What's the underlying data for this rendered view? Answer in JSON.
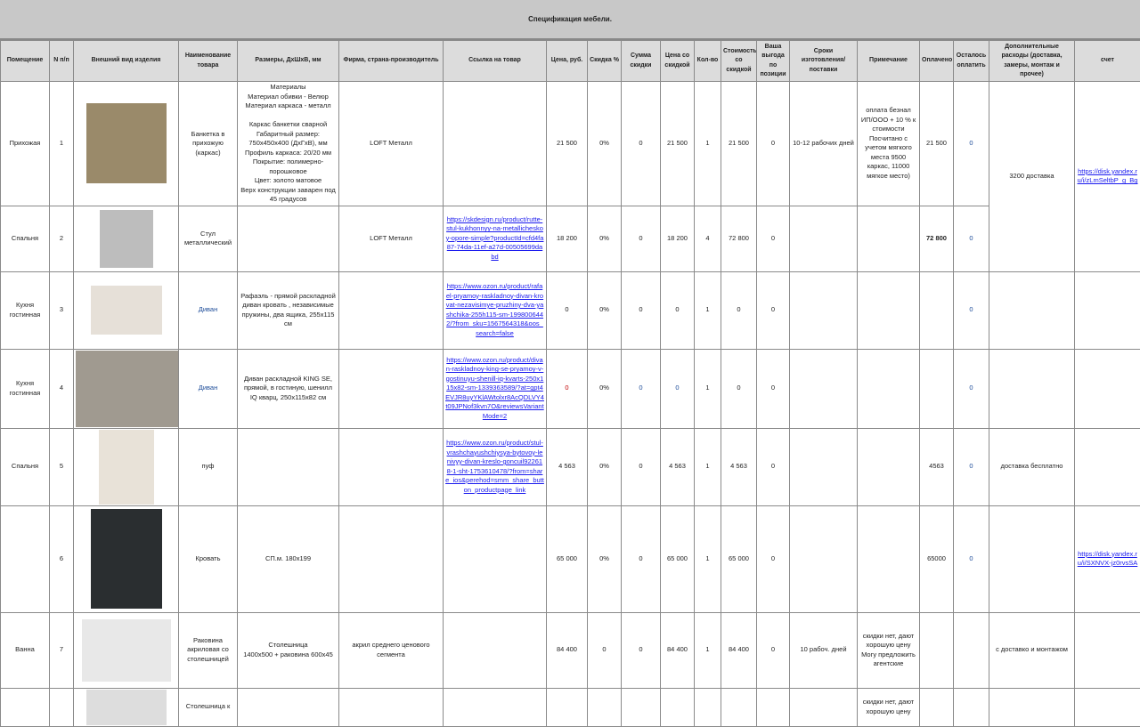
{
  "title": "Спецификация мебели.",
  "headers": [
    "Помещение",
    "N п/п",
    "Внешний вид изделия",
    "Наименование товара",
    "Размеры, ДхШхВ, мм",
    "Фирма, страна-производитель",
    "Ссылка на товар",
    "Цена, руб.",
    "Скидка %",
    "Сумма скидки",
    "Цена со скидкой",
    "Кол-во",
    "Стоимость со скидкой",
    "Ваша выгода по позиции",
    "Сроки изготовления/поставки",
    "Примечание",
    "Оплачено",
    "Осталось оплатить",
    "Дополнительные расходы (доставка, замеры, монтаж и прочее)",
    "счет"
  ],
  "rows": [
    {
      "room": "Прихожая",
      "n": "1",
      "name": "Банкетка в прихожую (каркас)",
      "size": "Материалы\nМатериал обивки - Велюр\nМатериал каркаса - металл\n\nКаркас банкетки сварной\nГабаритный размер: 750х450х400 (ДхГхВ), мм\nПрофиль каркаса: 20/20 мм\nПокрытие: полимерно-порошковое\nЦвет: золото матовое\nВерх конструкции заварен под 45 градусов",
      "firm": "LOFT Металл",
      "link": "",
      "price": "21 500",
      "disc": "0%",
      "discsum": "0",
      "pricedisc": "21 500",
      "qty": "1",
      "cost": "21 500",
      "benefit": "0",
      "terms": "10-12 рабочих дней",
      "note": "оплата безнал ИП/ООО + 10 % к стоимости Посчитано с учетом мягкого места 9500 каркас, 11000 мягкое место)",
      "paid": "21 500",
      "left": "0",
      "image": "bench"
    },
    {
      "room": "Спальня",
      "n": "2",
      "name": "Стул металлический",
      "size": "",
      "firm": "LOFT Металл",
      "link": "https://skdesign.ru/product/rutte-stul-kukhonnyy-na-metallicheskoy-opore-simple?productId=cfd4fa87-74da-11ef-a27d-00505699dabd",
      "price": "18 200",
      "disc": "0%",
      "discsum": "0",
      "pricedisc": "18 200",
      "qty": "4",
      "cost": "72 800",
      "benefit": "0",
      "terms": "",
      "note": "",
      "paid": "72 800",
      "left": "0",
      "image": "chair"
    },
    {
      "room": "Кухня гостинная",
      "n": "3",
      "name": "Диван",
      "size": "Рафаэль - прямой раскладной диван кровать , независимые пружины, два ящика, 255х115 см",
      "firm": "",
      "link": "https://www.ozon.ru/product/rafael-pryamoy-raskladnoy-divan-krovat-nezavisimye-pruzhiny-dva-yashchika-255h115-sm-1998006442/?from_sku=1567564318&oos_search=false",
      "price": "0",
      "disc": "0%",
      "discsum": "0",
      "pricedisc": "0",
      "qty": "1",
      "cost": "0",
      "benefit": "0",
      "terms": "",
      "note": "",
      "paid": "",
      "left": "0",
      "image": "sofa"
    },
    {
      "room": "Кухня гостинная",
      "n": "4",
      "name": "Диван",
      "size": "Диван раскладной KING SE, прямой, в гостиную, шенилл IQ кварц, 250х115х82 см",
      "firm": "",
      "link": "https://www.ozon.ru/product/divan-raskladnoy-king-se-pryamoy-v-gostinuyu-shenill-iq-kvarts-250x115x82-sm-1339363589/?at=gpt4EVJR8uyYKlAWtolxr8AcQDLVY4t09JPNof3kvn7O&reviewsVariantMode=2",
      "price": "0",
      "disc": "0%",
      "discsum": "0",
      "pricedisc": "0",
      "qty": "1",
      "cost": "0",
      "benefit": "0",
      "terms": "",
      "note": "",
      "paid": "",
      "left": "0",
      "image": "sofa-photo"
    },
    {
      "room": "Спальня",
      "n": "5",
      "name": "пуф",
      "size": "",
      "firm": "",
      "link": "https://www.ozon.ru/product/stul-vrashchayushchiysya-bytovoy-lenivyy-divan-kreslo-goncuil922618-1-sht-1753610478/?from=share_ios&perehod=smm_share_button_productpage_link",
      "price": "4 563",
      "disc": "0%",
      "discsum": "0",
      "pricedisc": "4 563",
      "qty": "1",
      "cost": "4 563",
      "benefit": "0",
      "terms": "",
      "note": "",
      "paid": "4563",
      "left": "0",
      "extra": "доставка бесплатно",
      "image": "pouf"
    },
    {
      "room": "",
      "n": "6",
      "name": "Кровать",
      "size": "СП.м. 180х199",
      "firm": "",
      "link": "",
      "price": "65 000",
      "disc": "0%",
      "discsum": "0",
      "pricedisc": "65 000",
      "qty": "1",
      "cost": "65 000",
      "benefit": "0",
      "terms": "",
      "note": "",
      "paid": "65000",
      "left": "0",
      "extra": "",
      "invoice": "https://disk.yandex.ru/i/SXNVX-jz0rvsSA",
      "image": "bed"
    },
    {
      "room": "Ванна",
      "n": "7",
      "name": "Раковина акриловая со столешницей",
      "size": "Столешница\n1400х500 + раковина 600х45",
      "firm": "акрил среднего ценового сегмента",
      "link": "",
      "price": "84 400",
      "disc": "0",
      "discsum": "0",
      "pricedisc": "84 400",
      "qty": "1",
      "cost": "84 400",
      "benefit": "0",
      "terms": "10 рабоч. дней",
      "note": "скидки нет, дают хорошую цену Могу предложить агентские",
      "paid": "",
      "left": "",
      "extra": "с доставко и монтажом",
      "invoice": "",
      "image": "sink"
    },
    {
      "room": "",
      "n": "",
      "name": "Столешница к",
      "size": "",
      "firm": "",
      "link": "",
      "price": "",
      "disc": "",
      "discsum": "",
      "pricedisc": "",
      "qty": "",
      "cost": "",
      "benefit": "",
      "terms": "",
      "note": "скидки нет, дают хорошую цену",
      "paid": "",
      "left": "",
      "extra": "",
      "invoice": "",
      "image": "counter"
    }
  ],
  "merged": {
    "extra": "3200 доставка",
    "invoice": "https://disk.yandex.ru/i/zLmSeltbP_g_Bg"
  },
  "colors": {
    "link": "#1a1aee",
    "header_bg": "#dcdcdc",
    "title_bg": "#c8c8c8",
    "value_blue": "#1f4e9a",
    "value_red": "#c00000"
  }
}
